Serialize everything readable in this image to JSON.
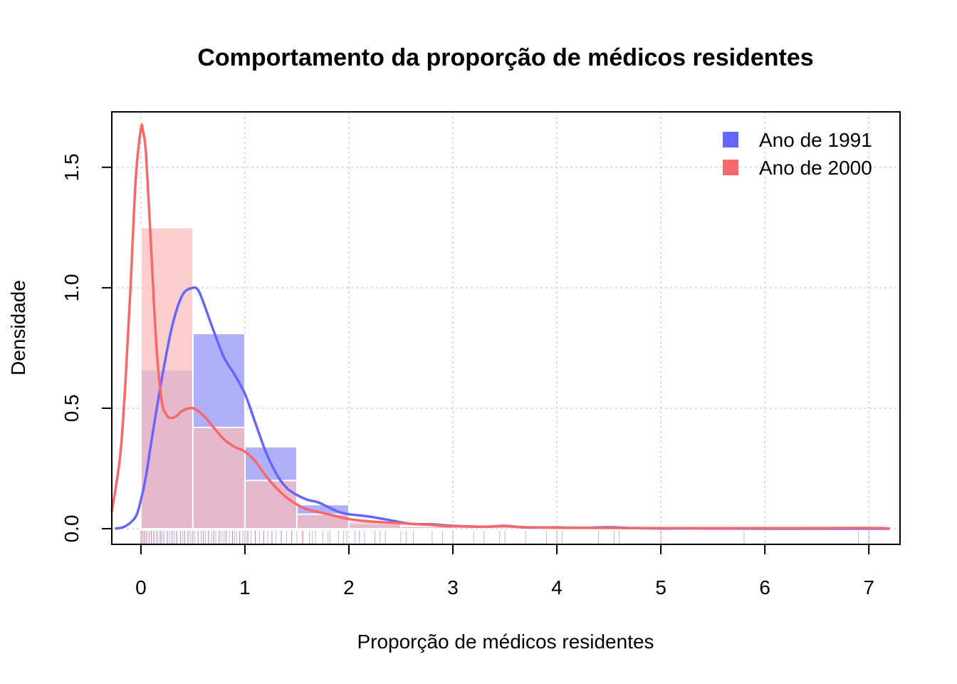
{
  "chart_data": {
    "type": "histogram-density",
    "title": "Comportamento da proporção de médicos residentes",
    "xlabel": "Proporção de médicos residentes",
    "ylabel": "Densidade",
    "xlim": [
      -0.28,
      7.3
    ],
    "ylim": [
      -0.065,
      1.73
    ],
    "x_ticks": [
      "0",
      "1",
      "2",
      "3",
      "4",
      "5",
      "6",
      "7"
    ],
    "x_tick_values": [
      0,
      1,
      2,
      3,
      4,
      5,
      6,
      7
    ],
    "y_ticks": [
      "0.0",
      "0.5",
      "1.0",
      "1.5"
    ],
    "y_tick_values": [
      0,
      0.5,
      1.0,
      1.5
    ],
    "grid": true,
    "legend_position": "top-right",
    "bins": [
      0,
      0.5,
      1.0,
      1.5,
      2.0,
      2.5,
      3.0
    ],
    "series": [
      {
        "name": "Ano de 1991",
        "color": "#6666ff",
        "bar_fill": "#b0b0fa",
        "histogram": [
          0.66,
          0.81,
          0.34,
          0.1,
          0.02,
          0.01
        ],
        "density": {
          "x": [
            -0.25,
            -0.15,
            -0.05,
            0.0,
            0.05,
            0.1,
            0.2,
            0.3,
            0.4,
            0.5,
            0.55,
            0.6,
            0.7,
            0.8,
            0.9,
            1.0,
            1.1,
            1.2,
            1.3,
            1.4,
            1.5,
            1.6,
            1.7,
            1.8,
            1.9,
            2.0,
            2.2,
            2.4,
            2.6,
            2.8,
            3.0,
            3.3,
            3.5,
            3.7,
            4.0,
            4.3,
            4.5,
            4.7,
            5.0,
            5.5,
            6.0,
            6.5,
            7.0,
            7.2
          ],
          "y": [
            0.0,
            0.01,
            0.05,
            0.12,
            0.22,
            0.36,
            0.62,
            0.84,
            0.97,
            1.0,
            0.99,
            0.94,
            0.82,
            0.71,
            0.64,
            0.56,
            0.44,
            0.32,
            0.23,
            0.17,
            0.14,
            0.12,
            0.11,
            0.09,
            0.07,
            0.06,
            0.05,
            0.035,
            0.02,
            0.018,
            0.012,
            0.008,
            0.012,
            0.005,
            0.005,
            0.004,
            0.006,
            0.003,
            0.001,
            0.001,
            0.0,
            0.0,
            0.0,
            0.0
          ]
        }
      },
      {
        "name": "Ano de 2000",
        "color": "#f86868",
        "bar_fill": "#fbbbbb",
        "histogram": [
          1.25,
          0.42,
          0.2,
          0.06,
          0.03,
          0.01
        ],
        "density": {
          "x": [
            -0.28,
            -0.2,
            -0.15,
            -0.1,
            -0.05,
            0.0,
            0.02,
            0.05,
            0.1,
            0.15,
            0.2,
            0.25,
            0.3,
            0.35,
            0.4,
            0.5,
            0.6,
            0.7,
            0.8,
            0.9,
            1.0,
            1.1,
            1.2,
            1.3,
            1.4,
            1.5,
            1.6,
            1.7,
            1.8,
            2.0,
            2.2,
            2.4,
            2.6,
            2.8,
            3.0,
            3.3,
            3.5,
            3.7,
            4.0,
            4.5,
            5.0,
            6.0,
            7.0,
            7.2
          ],
          "y": [
            0.07,
            0.3,
            0.6,
            1.0,
            1.45,
            1.66,
            1.65,
            1.55,
            1.15,
            0.75,
            0.53,
            0.47,
            0.46,
            0.47,
            0.49,
            0.5,
            0.47,
            0.42,
            0.37,
            0.34,
            0.32,
            0.28,
            0.22,
            0.17,
            0.13,
            0.1,
            0.08,
            0.07,
            0.06,
            0.04,
            0.03,
            0.025,
            0.02,
            0.015,
            0.01,
            0.008,
            0.01,
            0.006,
            0.004,
            0.003,
            0.002,
            0.002,
            0.003,
            0.001
          ]
        }
      }
    ],
    "rug_1991": [
      0.05,
      0.08,
      0.1,
      0.12,
      0.15,
      0.18,
      0.2,
      0.22,
      0.25,
      0.28,
      0.3,
      0.32,
      0.35,
      0.38,
      0.4,
      0.42,
      0.45,
      0.48,
      0.5,
      0.52,
      0.55,
      0.58,
      0.6,
      0.62,
      0.65,
      0.68,
      0.7,
      0.72,
      0.75,
      0.78,
      0.8,
      0.82,
      0.85,
      0.88,
      0.9,
      0.92,
      0.95,
      0.98,
      1.0,
      1.03,
      1.06,
      1.1,
      1.14,
      1.18,
      1.22,
      1.26,
      1.3,
      1.35,
      1.4,
      1.45,
      1.5,
      1.56,
      1.62,
      1.68,
      1.75,
      1.82,
      1.9,
      1.98,
      2.06,
      2.15,
      2.25,
      2.35,
      2.5,
      2.62,
      2.8,
      3.0,
      3.2,
      3.45,
      3.5,
      3.7,
      3.9,
      4.05,
      4.4,
      4.55,
      4.6,
      5.8,
      6.9
    ],
    "rug_2000": [
      0.0,
      0.01,
      0.02,
      0.03,
      0.04,
      0.06,
      0.08,
      0.1,
      0.13,
      0.16,
      0.19,
      0.22,
      0.26,
      0.3,
      0.34,
      0.38,
      0.42,
      0.46,
      0.5,
      0.55,
      0.6,
      0.65,
      0.7,
      0.76,
      0.82,
      0.88,
      0.95,
      1.02,
      1.1,
      1.18,
      1.26,
      1.35,
      1.45,
      1.55,
      1.65,
      1.8,
      1.95,
      2.1,
      2.3,
      2.55,
      2.9,
      3.3,
      4.0,
      5.0,
      7.0
    ]
  }
}
